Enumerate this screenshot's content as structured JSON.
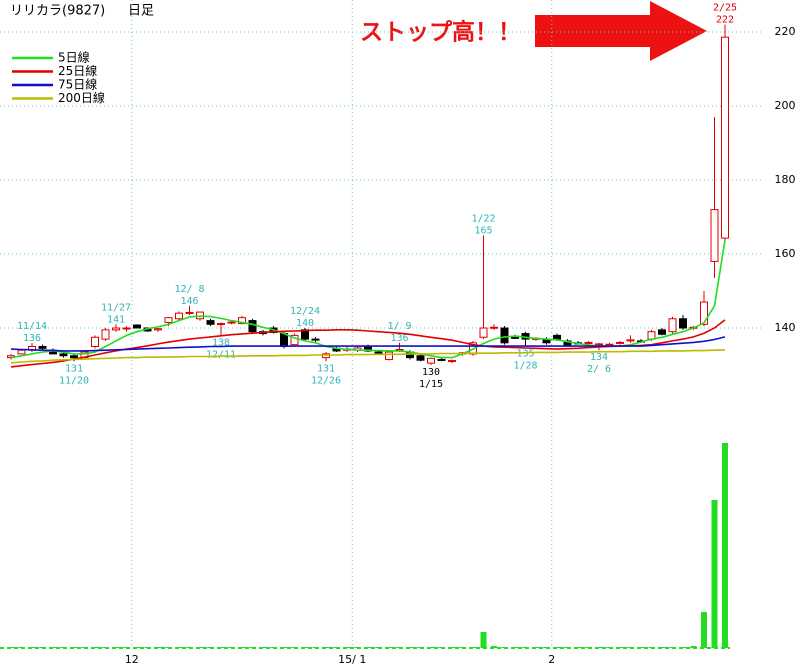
{
  "chart_data": {
    "type": "candlestick",
    "title": "リリカラ(9827)",
    "period": "日足",
    "annotation": "ストップ高！！",
    "ylim": [
      120,
      228
    ],
    "yticks": [
      140,
      160,
      180,
      200,
      220
    ],
    "volume_ylim": [
      0,
      220
    ],
    "grid": true,
    "legend": "upper left",
    "up_color": "#e00000",
    "down_color": "#000000",
    "volume_color": "#22dd22",
    "categories": [
      null,
      null,
      null,
      null,
      null,
      null,
      null,
      null,
      null,
      null,
      null,
      null,
      "12",
      null,
      null,
      null,
      null,
      null,
      null,
      null,
      null,
      null,
      null,
      null,
      null,
      null,
      null,
      null,
      null,
      null,
      null,
      null,
      null,
      "15/ 1",
      null,
      null,
      null,
      null,
      null,
      null,
      null,
      null,
      null,
      null,
      null,
      null,
      null,
      null,
      null,
      null,
      null,
      null,
      "2",
      null,
      null,
      null,
      null,
      null,
      null,
      null,
      null,
      null,
      null,
      null,
      null,
      null,
      null,
      null,
      null
    ],
    "candles": [
      {
        "open": 132,
        "high": 133,
        "low": 131.5,
        "close": 132.5,
        "volume": 1
      },
      {
        "open": 133,
        "high": 134,
        "low": 133,
        "close": 134,
        "volume": 1
      },
      {
        "open": 134,
        "high": 136,
        "low": 133.5,
        "close": 135,
        "volume": 1,
        "label": {
          "date": "11/14",
          "at": "high",
          "color": "#2fb5b5"
        }
      },
      {
        "open": 135,
        "high": 135.5,
        "low": 134,
        "close": 134.5,
        "volume": 1
      },
      {
        "open": 134,
        "high": 134.5,
        "low": 133,
        "close": 133,
        "volume": 1
      },
      {
        "open": 133,
        "high": 133.5,
        "low": 132,
        "close": 132.5,
        "volume": 1
      },
      {
        "open": 132.5,
        "high": 133,
        "low": 131,
        "close": 132,
        "volume": 1,
        "label": {
          "date": "11/20",
          "at": "low",
          "color": "#2fb5b5"
        }
      },
      {
        "open": 132,
        "high": 134,
        "low": 132,
        "close": 133.5,
        "volume": 1
      },
      {
        "open": 135,
        "high": 138,
        "low": 134.5,
        "close": 137.5,
        "volume": 1
      },
      {
        "open": 137,
        "high": 140,
        "low": 136.5,
        "close": 139.5,
        "volume": 1
      },
      {
        "open": 139.5,
        "high": 141,
        "low": 139,
        "close": 140,
        "volume": 1,
        "label": {
          "date": "11/27",
          "at": "high",
          "color": "#2fb5b5"
        }
      },
      {
        "open": 140,
        "high": 140.5,
        "low": 139,
        "close": 140,
        "volume": 1
      },
      {
        "open": 140.8,
        "high": 141,
        "low": 140,
        "close": 140,
        "volume": 1
      },
      {
        "open": 140,
        "high": 140.2,
        "low": 139,
        "close": 139.2,
        "volume": 1
      },
      {
        "open": 139.5,
        "high": 140,
        "low": 139,
        "close": 139.8,
        "volume": 1
      },
      {
        "open": 141.5,
        "high": 143,
        "low": 140.5,
        "close": 142.8,
        "volume": 1
      },
      {
        "open": 142.5,
        "high": 144.5,
        "low": 142,
        "close": 144,
        "volume": 1
      },
      {
        "open": 144,
        "high": 146,
        "low": 143.5,
        "close": 144.2,
        "volume": 1,
        "label": {
          "date": "12/ 8",
          "at": "high",
          "color": "#2fb5b5"
        }
      },
      {
        "open": 142.5,
        "high": 144.5,
        "low": 142,
        "close": 144.3,
        "volume": 1
      },
      {
        "open": 142,
        "high": 142.5,
        "low": 140.5,
        "close": 141,
        "volume": 1
      },
      {
        "open": 141,
        "high": 141.5,
        "low": 138,
        "close": 141.2,
        "volume": 1,
        "label": {
          "date": "12/11",
          "at": "low",
          "color": "#2fb5b5"
        }
      },
      {
        "open": 141.5,
        "high": 142,
        "low": 141,
        "close": 141.6,
        "volume": 1
      },
      {
        "open": 141.2,
        "high": 143.3,
        "low": 141,
        "close": 142.8,
        "volume": 1
      },
      {
        "open": 142,
        "high": 142.5,
        "low": 138.5,
        "close": 139,
        "volume": 1
      },
      {
        "open": 139,
        "high": 139.5,
        "low": 138,
        "close": 138.5,
        "volume": 1
      },
      {
        "open": 140,
        "high": 140.5,
        "low": 138.5,
        "close": 138.8,
        "volume": 1
      },
      {
        "open": 138.5,
        "high": 139,
        "low": 134.5,
        "close": 135,
        "volume": 1
      },
      {
        "open": 135.5,
        "high": 138.5,
        "low": 135,
        "close": 138,
        "volume": 1
      },
      {
        "open": 139.5,
        "high": 140,
        "low": 136.5,
        "close": 137,
        "volume": 1,
        "label": {
          "date": "12/24",
          "at": "high",
          "color": "#2fb5b5"
        }
      },
      {
        "open": 137,
        "high": 137.5,
        "low": 136,
        "close": 136.8,
        "volume": 1
      },
      {
        "open": 132,
        "high": 133.5,
        "low": 131,
        "close": 133,
        "volume": 1,
        "label": {
          "date": "12/26",
          "at": "low",
          "color": "#2fb5b5"
        }
      },
      {
        "open": 134.5,
        "high": 135,
        "low": 133.5,
        "close": 133.8,
        "volume": 1
      },
      {
        "open": 134,
        "high": 135,
        "low": 133.5,
        "close": 134.3,
        "volume": 1
      },
      {
        "open": 134,
        "high": 135,
        "low": 133.5,
        "close": 134.6,
        "volume": 1
      },
      {
        "open": 135,
        "high": 135.5,
        "low": 133.5,
        "close": 133.8,
        "volume": 1
      },
      {
        "open": 133.5,
        "high": 134,
        "low": 133,
        "close": 133.3,
        "volume": 1
      },
      {
        "open": 131.5,
        "high": 134,
        "low": 131.2,
        "close": 133.5,
        "volume": 1
      },
      {
        "open": 134,
        "high": 136,
        "low": 133.5,
        "close": 134.2,
        "volume": 1,
        "label": {
          "date": "1/ 9",
          "at": "high",
          "color": "#2fb5b5"
        }
      },
      {
        "open": 133.5,
        "high": 134,
        "low": 131.5,
        "close": 132,
        "volume": 1
      },
      {
        "open": 132.5,
        "high": 133,
        "low": 131,
        "close": 131.3,
        "volume": 1
      },
      {
        "open": 130.5,
        "high": 132,
        "low": 130,
        "close": 131.8,
        "volume": 1,
        "label": {
          "date": "1/15",
          "at": "low",
          "color": "#000000"
        }
      },
      {
        "open": 131.5,
        "high": 132,
        "low": 131,
        "close": 131.3,
        "volume": 1
      },
      {
        "open": 131,
        "high": 131.5,
        "low": 130.5,
        "close": 131.2,
        "volume": 1
      },
      {
        "open": 133,
        "high": 133.5,
        "low": 132.5,
        "close": 133.3,
        "volume": 1
      },
      {
        "open": 133,
        "high": 136.5,
        "low": 132.5,
        "close": 136,
        "volume": 1
      },
      {
        "open": 137.5,
        "high": 165,
        "low": 137,
        "close": 140,
        "volume": 16,
        "label": {
          "date": "1/22",
          "at": "high",
          "color": "#2fb5b5"
        }
      },
      {
        "open": 140,
        "high": 141,
        "low": 139.5,
        "close": 140.2,
        "volume": 2
      },
      {
        "open": 140,
        "high": 140.5,
        "low": 135.5,
        "close": 136,
        "volume": 1
      },
      {
        "open": 137.8,
        "high": 138.2,
        "low": 137,
        "close": 137.2,
        "volume": 1
      },
      {
        "open": 138.5,
        "high": 139,
        "low": 135,
        "close": 137,
        "volume": 1,
        "label": {
          "date": "1/28",
          "at": "low",
          "color": "#2fb5b5"
        }
      },
      {
        "open": 137,
        "high": 137.5,
        "low": 136.5,
        "close": 137.2,
        "volume": 1
      },
      {
        "open": 137,
        "high": 137.5,
        "low": 135.5,
        "close": 136,
        "volume": 1
      },
      {
        "open": 138,
        "high": 138.5,
        "low": 136.5,
        "close": 136.8,
        "volume": 1
      },
      {
        "open": 136.5,
        "high": 137,
        "low": 135,
        "close": 135.3,
        "volume": 1
      },
      {
        "open": 136,
        "high": 136.5,
        "low": 135.5,
        "close": 135.7,
        "volume": 1
      },
      {
        "open": 136,
        "high": 136.5,
        "low": 135.5,
        "close": 136.1,
        "volume": 1
      },
      {
        "open": 135.5,
        "high": 136,
        "low": 134,
        "close": 135.7,
        "volume": 1,
        "label": {
          "date": "2/ 6",
          "at": "low",
          "color": "#2fb5b5"
        }
      },
      {
        "open": 135.5,
        "high": 136,
        "low": 135,
        "close": 135.6,
        "volume": 1
      },
      {
        "open": 136,
        "high": 136.5,
        "low": 135.5,
        "close": 136.1,
        "volume": 1
      },
      {
        "open": 136.5,
        "high": 138,
        "low": 136,
        "close": 136.8,
        "volume": 1
      },
      {
        "open": 136.5,
        "high": 137,
        "low": 136,
        "close": 136.2,
        "volume": 1
      },
      {
        "open": 137,
        "high": 139.5,
        "low": 136.5,
        "close": 139,
        "volume": 1
      },
      {
        "open": 139.5,
        "high": 140,
        "low": 138,
        "close": 138.3,
        "volume": 1
      },
      {
        "open": 139,
        "high": 143,
        "low": 138.5,
        "close": 142.5,
        "volume": 1
      },
      {
        "open": 142.5,
        "high": 143.5,
        "low": 139.5,
        "close": 140,
        "volume": 1
      },
      {
        "open": 140,
        "high": 140.5,
        "low": 139.5,
        "close": 140.2,
        "volume": 2
      },
      {
        "open": 141,
        "high": 150,
        "low": 140.5,
        "close": 147,
        "volume": 36
      },
      {
        "open": 158,
        "high": 197,
        "low": 153.5,
        "close": 172,
        "volume": 148
      },
      {
        "open": 164.3,
        "high": 222,
        "low": 163,
        "close": 218.6,
        "volume": 205,
        "label": {
          "date": "2/25",
          "at": "high",
          "color": "#e00000"
        }
      }
    ],
    "series": [
      {
        "name": "5日線",
        "color": "#22dd22",
        "values": [
          132,
          132.5,
          133,
          133.5,
          133.8,
          133.5,
          133,
          133,
          133.5,
          135,
          136.5,
          138,
          139,
          139.8,
          140.3,
          141,
          142,
          143,
          143.2,
          143.1,
          142.6,
          142,
          141.5,
          141,
          140.2,
          139.5,
          138.5,
          137.3,
          136.5,
          136,
          135,
          134.5,
          134.2,
          134,
          134,
          133.9,
          133.8,
          133.8,
          133.5,
          133,
          132.5,
          132,
          132,
          133,
          134.3,
          135.8,
          137,
          137.6,
          137.8,
          137.5,
          137.2,
          137,
          136.8,
          136.3,
          135.8,
          135.4,
          135.2,
          135.1,
          135.1,
          135.5,
          136.2,
          137,
          137.5,
          138.3,
          139,
          140,
          141.4,
          146,
          163.8
        ]
      },
      {
        "name": "25日線",
        "color": "#e00000",
        "values": [
          129.5,
          129.8,
          130.1,
          130.4,
          130.7,
          131.1,
          131.6,
          132.1,
          132.7,
          133.3,
          133.8,
          134.3,
          134.7,
          135.2,
          135.7,
          136.2,
          136.6,
          137,
          137.3,
          137.6,
          137.9,
          138.2,
          138.4,
          138.6,
          138.8,
          139,
          139.1,
          139.2,
          139.3,
          139.4,
          139.4,
          139.5,
          139.5,
          139.4,
          139.2,
          139,
          138.8,
          138.6,
          138.3,
          137.9,
          137.5,
          137.1,
          136.7,
          136.1,
          135.5,
          135.1,
          134.9,
          134.8,
          134.7,
          134.6,
          134.5,
          134.4,
          134.3,
          134.4,
          134.5,
          134.7,
          134.9,
          135,
          135.1,
          135.2,
          135.3,
          135.5,
          136,
          136.5,
          137,
          137.6,
          138.6,
          140,
          142.2
        ]
      },
      {
        "name": "75日線",
        "color": "#1010cc",
        "values": [
          134.3,
          134.2,
          134.1,
          134,
          133.9,
          133.8,
          133.8,
          133.8,
          133.9,
          134,
          134.1,
          134.2,
          134.3,
          134.4,
          134.5,
          134.6,
          134.7,
          134.8,
          134.9,
          135,
          135,
          135.1,
          135.1,
          135.1,
          135.1,
          135.1,
          135.1,
          135.1,
          135.1,
          135.1,
          135.1,
          135.1,
          135.1,
          135.1,
          135.1,
          135.1,
          135.1,
          135.1,
          135.1,
          135.1,
          135.1,
          135.1,
          135.1,
          135.1,
          135.1,
          135.1,
          135.1,
          135.1,
          135.1,
          135.1,
          135.1,
          135.1,
          135.1,
          135.1,
          135.1,
          135.1,
          135.1,
          135.1,
          135.1,
          135.1,
          135.1,
          135.3,
          135.5,
          135.7,
          135.9,
          136.1,
          136.4,
          136.9,
          137.6
        ]
      },
      {
        "name": "200日線",
        "color": "#bbbb00",
        "values": [
          130.6,
          130.8,
          131,
          131.1,
          131.3,
          131.4,
          131.5,
          131.6,
          131.7,
          131.8,
          131.9,
          132,
          132,
          132.1,
          132.1,
          132.2,
          132.2,
          132.3,
          132.3,
          132.3,
          132.4,
          132.4,
          132.4,
          132.5,
          132.5,
          132.5,
          132.6,
          132.6,
          132.6,
          132.7,
          132.7,
          132.7,
          132.8,
          132.8,
          132.8,
          132.9,
          132.9,
          132.9,
          133,
          133,
          133,
          133.1,
          133.1,
          133.1,
          133.2,
          133.2,
          133.2,
          133.3,
          133.3,
          133.3,
          133.4,
          133.4,
          133.4,
          133.5,
          133.5,
          133.5,
          133.6,
          133.6,
          133.6,
          133.7,
          133.7,
          133.7,
          133.8,
          133.8,
          133.8,
          133.9,
          133.9,
          134,
          134.1
        ]
      }
    ]
  }
}
